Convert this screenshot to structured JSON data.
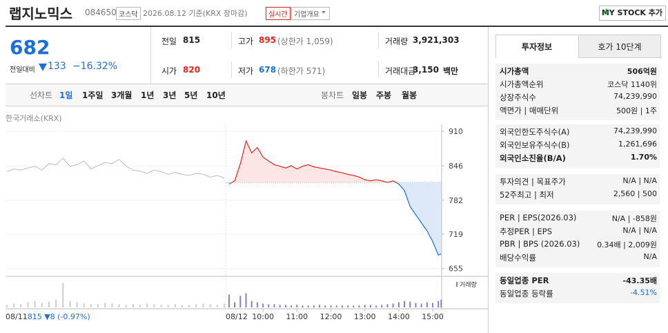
{
  "header": {
    "name": "랩지노믹스",
    "code": "084650",
    "market": "코스닥",
    "date": "2026.08.12 기준(KRX 장마감)",
    "realtime": "실시간",
    "overview": "기업개요",
    "my_stock": "MY STOCK 추가"
  },
  "price": {
    "current": "682",
    "change_label": "전일대비",
    "change": "133",
    "change_pct": "−16.32%"
  },
  "quotes": [
    {
      "label": "전일",
      "value": "815"
    },
    {
      "label": "고가",
      "value": "895",
      "extra": "(상한가 1,059)"
    },
    {
      "label": "거래량",
      "value": "3,921,303"
    },
    {
      "label": "시가",
      "value": "820"
    },
    {
      "label": "저가",
      "value": "678",
      "extra": "(하한가 571)"
    },
    {
      "label": "거래대금",
      "value": "3,150",
      "extra": "백만"
    }
  ],
  "tabs": {
    "line_chart": "선차트",
    "periods": [
      "1일",
      "1주일",
      "3개월",
      "1년",
      "3년",
      "5년",
      "10년"
    ],
    "candle_chart": "봉차트",
    "candles": [
      "일봉",
      "주봉",
      "월봉"
    ]
  },
  "chart_data": {
    "type": "line",
    "source": "한국거래소(KRX)",
    "volume_legend": "거래량",
    "prev_date": "08/11",
    "prev_close": "815",
    "prev_change": "▼8 (-0.97%)",
    "today_date": "08/12",
    "base": 815,
    "ylim": [
      643,
      923
    ],
    "yticks": [
      910,
      846,
      782,
      719,
      655
    ],
    "xlim": [
      -6,
      388
    ],
    "xticks": [
      {
        "value": 60,
        "label": "10:00"
      },
      {
        "value": 120,
        "label": "11:00"
      },
      {
        "value": 180,
        "label": "12:00"
      },
      {
        "value": 240,
        "label": "13:00"
      },
      {
        "value": 300,
        "label": "14:00"
      },
      {
        "value": 360,
        "label": "15:00"
      }
    ],
    "prev_day": {
      "color": "#bbbbbb",
      "values": [
        835,
        840,
        838,
        842,
        845,
        838,
        850,
        848,
        860,
        845,
        848,
        855,
        840,
        846,
        852,
        850,
        858,
        845,
        838,
        836,
        832,
        838,
        835,
        830,
        834,
        830,
        828,
        832,
        830,
        825,
        828,
        823
      ],
      "volumes": [
        4,
        6,
        5,
        8,
        10,
        7,
        9,
        12,
        38,
        10,
        8,
        6,
        5,
        5,
        7,
        6,
        5,
        4,
        5,
        4,
        6,
        5,
        4,
        4,
        5,
        4,
        4,
        5,
        6,
        5,
        4,
        6
      ]
    },
    "today": {
      "up_color": "#e2231a",
      "down_color": "#1a6fd9",
      "volume_color": "#8b7bc9",
      "x": [
        0,
        10,
        20,
        30,
        40,
        50,
        60,
        70,
        80,
        90,
        100,
        110,
        120,
        130,
        140,
        150,
        160,
        170,
        180,
        190,
        200,
        210,
        220,
        230,
        240,
        250,
        260,
        270,
        280,
        290,
        300,
        310,
        320,
        330,
        340,
        350,
        360,
        370,
        375
      ],
      "values": [
        812,
        818,
        850,
        892,
        870,
        880,
        862,
        855,
        848,
        845,
        842,
        846,
        840,
        845,
        848,
        844,
        842,
        840,
        838,
        835,
        833,
        830,
        828,
        825,
        820,
        818,
        820,
        818,
        815,
        818,
        812,
        800,
        770,
        755,
        740,
        725,
        705,
        680,
        682
      ],
      "volumes": [
        20,
        8,
        18,
        22,
        10,
        8,
        6,
        5,
        5,
        4,
        4,
        3,
        4,
        3,
        3,
        3,
        4,
        3,
        3,
        3,
        3,
        3,
        3,
        3,
        4,
        4,
        3,
        4,
        5,
        6,
        8,
        10,
        9,
        7,
        6,
        8,
        7,
        10,
        12
      ]
    },
    "vlim": [
      0,
      45
    ]
  },
  "info": {
    "tabs": [
      "투자정보",
      "호가 10단계"
    ],
    "groups": [
      [
        {
          "label": "시가총액",
          "value": "506억원"
        },
        {
          "label": "시가총액순위",
          "value": "코스닥 1140위"
        },
        {
          "label": "상장주식수",
          "value": "74,239,990"
        },
        {
          "label": "액면가 | 매매단위",
          "value": "500원 | 1주"
        }
      ],
      [
        {
          "label": "외국인한도주식수(A)",
          "value": "74,239,990"
        },
        {
          "label": "외국인보유주식수(B)",
          "value": "1,261,696"
        },
        {
          "label": "외국인소진율(B/A)",
          "value": "1.70%"
        }
      ],
      [
        {
          "label": "투자의견 | 목표주가",
          "value": "N/A | N/A"
        },
        {
          "label": "52주최고 | 최저",
          "value": "2,560 | 500"
        }
      ],
      [
        {
          "label": "PER | EPS(2026.03)",
          "value": "N/A | -858원"
        },
        {
          "label": "추정PER | EPS",
          "value": "N/A | N/A"
        },
        {
          "label": "PBR | BPS (2026.03)",
          "value": "0.34배 | 2,009원"
        },
        {
          "label": "배당수익률",
          "value": "N/A"
        }
      ],
      [
        {
          "label": "동일업종 PER",
          "value": "-43.35배"
        },
        {
          "label": "동일업종 등락률",
          "value": "-4.51%"
        }
      ]
    ]
  }
}
